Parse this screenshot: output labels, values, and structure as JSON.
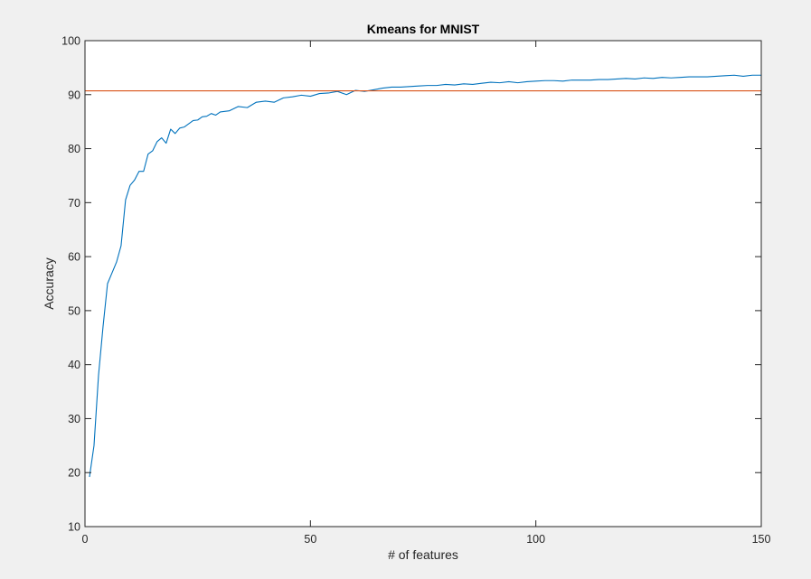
{
  "chart_data": {
    "type": "line",
    "title": "Kmeans for MNIST",
    "xlabel": "# of features",
    "ylabel": "Accuracy",
    "xlim": [
      0,
      150
    ],
    "ylim": [
      10,
      100
    ],
    "xticks": [
      0,
      50,
      100,
      150
    ],
    "yticks": [
      10,
      20,
      30,
      40,
      50,
      60,
      70,
      80,
      90,
      100
    ],
    "grid": false,
    "series": [
      {
        "color": "#0072BD",
        "x": [
          1,
          2,
          3,
          4,
          5,
          6,
          7,
          8,
          9,
          10,
          11,
          12,
          13,
          14,
          15,
          16,
          17,
          18,
          19,
          20,
          21,
          22,
          23,
          24,
          25,
          26,
          27,
          28,
          29,
          30,
          32,
          34,
          36,
          38,
          40,
          42,
          44,
          46,
          48,
          50,
          52,
          54,
          56,
          58,
          60,
          62,
          64,
          66,
          68,
          70,
          72,
          74,
          76,
          78,
          80,
          82,
          84,
          86,
          88,
          90,
          92,
          94,
          96,
          98,
          100,
          102,
          104,
          106,
          108,
          110,
          112,
          114,
          116,
          118,
          120,
          122,
          124,
          126,
          128,
          130,
          132,
          134,
          136,
          138,
          140,
          142,
          144,
          146,
          148,
          150
        ],
        "y": [
          19.2,
          25.0,
          38.0,
          47.0,
          55.0,
          57.0,
          59.0,
          62.0,
          70.5,
          73.2,
          74.2,
          75.8,
          75.8,
          79.0,
          79.6,
          81.3,
          82.0,
          81.0,
          83.6,
          82.8,
          83.8,
          84.0,
          84.6,
          85.2,
          85.3,
          85.9,
          86.0,
          86.5,
          86.2,
          86.8,
          87.0,
          87.8,
          87.6,
          88.6,
          88.8,
          88.6,
          89.4,
          89.6,
          89.9,
          89.7,
          90.2,
          90.3,
          90.6,
          90.0,
          90.8,
          90.6,
          90.9,
          91.2,
          91.4,
          91.4,
          91.5,
          91.6,
          91.7,
          91.7,
          91.9,
          91.8,
          92.0,
          91.9,
          92.1,
          92.3,
          92.2,
          92.4,
          92.2,
          92.4,
          92.5,
          92.6,
          92.6,
          92.5,
          92.7,
          92.7,
          92.7,
          92.8,
          92.8,
          92.9,
          93.0,
          92.9,
          93.1,
          93.0,
          93.2,
          93.1,
          93.2,
          93.3,
          93.3,
          93.3,
          93.4,
          93.5,
          93.6,
          93.4,
          93.6,
          93.6
        ]
      },
      {
        "color": "#D95319",
        "x": [
          0,
          150
        ],
        "y": [
          90.7,
          90.7
        ]
      }
    ]
  }
}
